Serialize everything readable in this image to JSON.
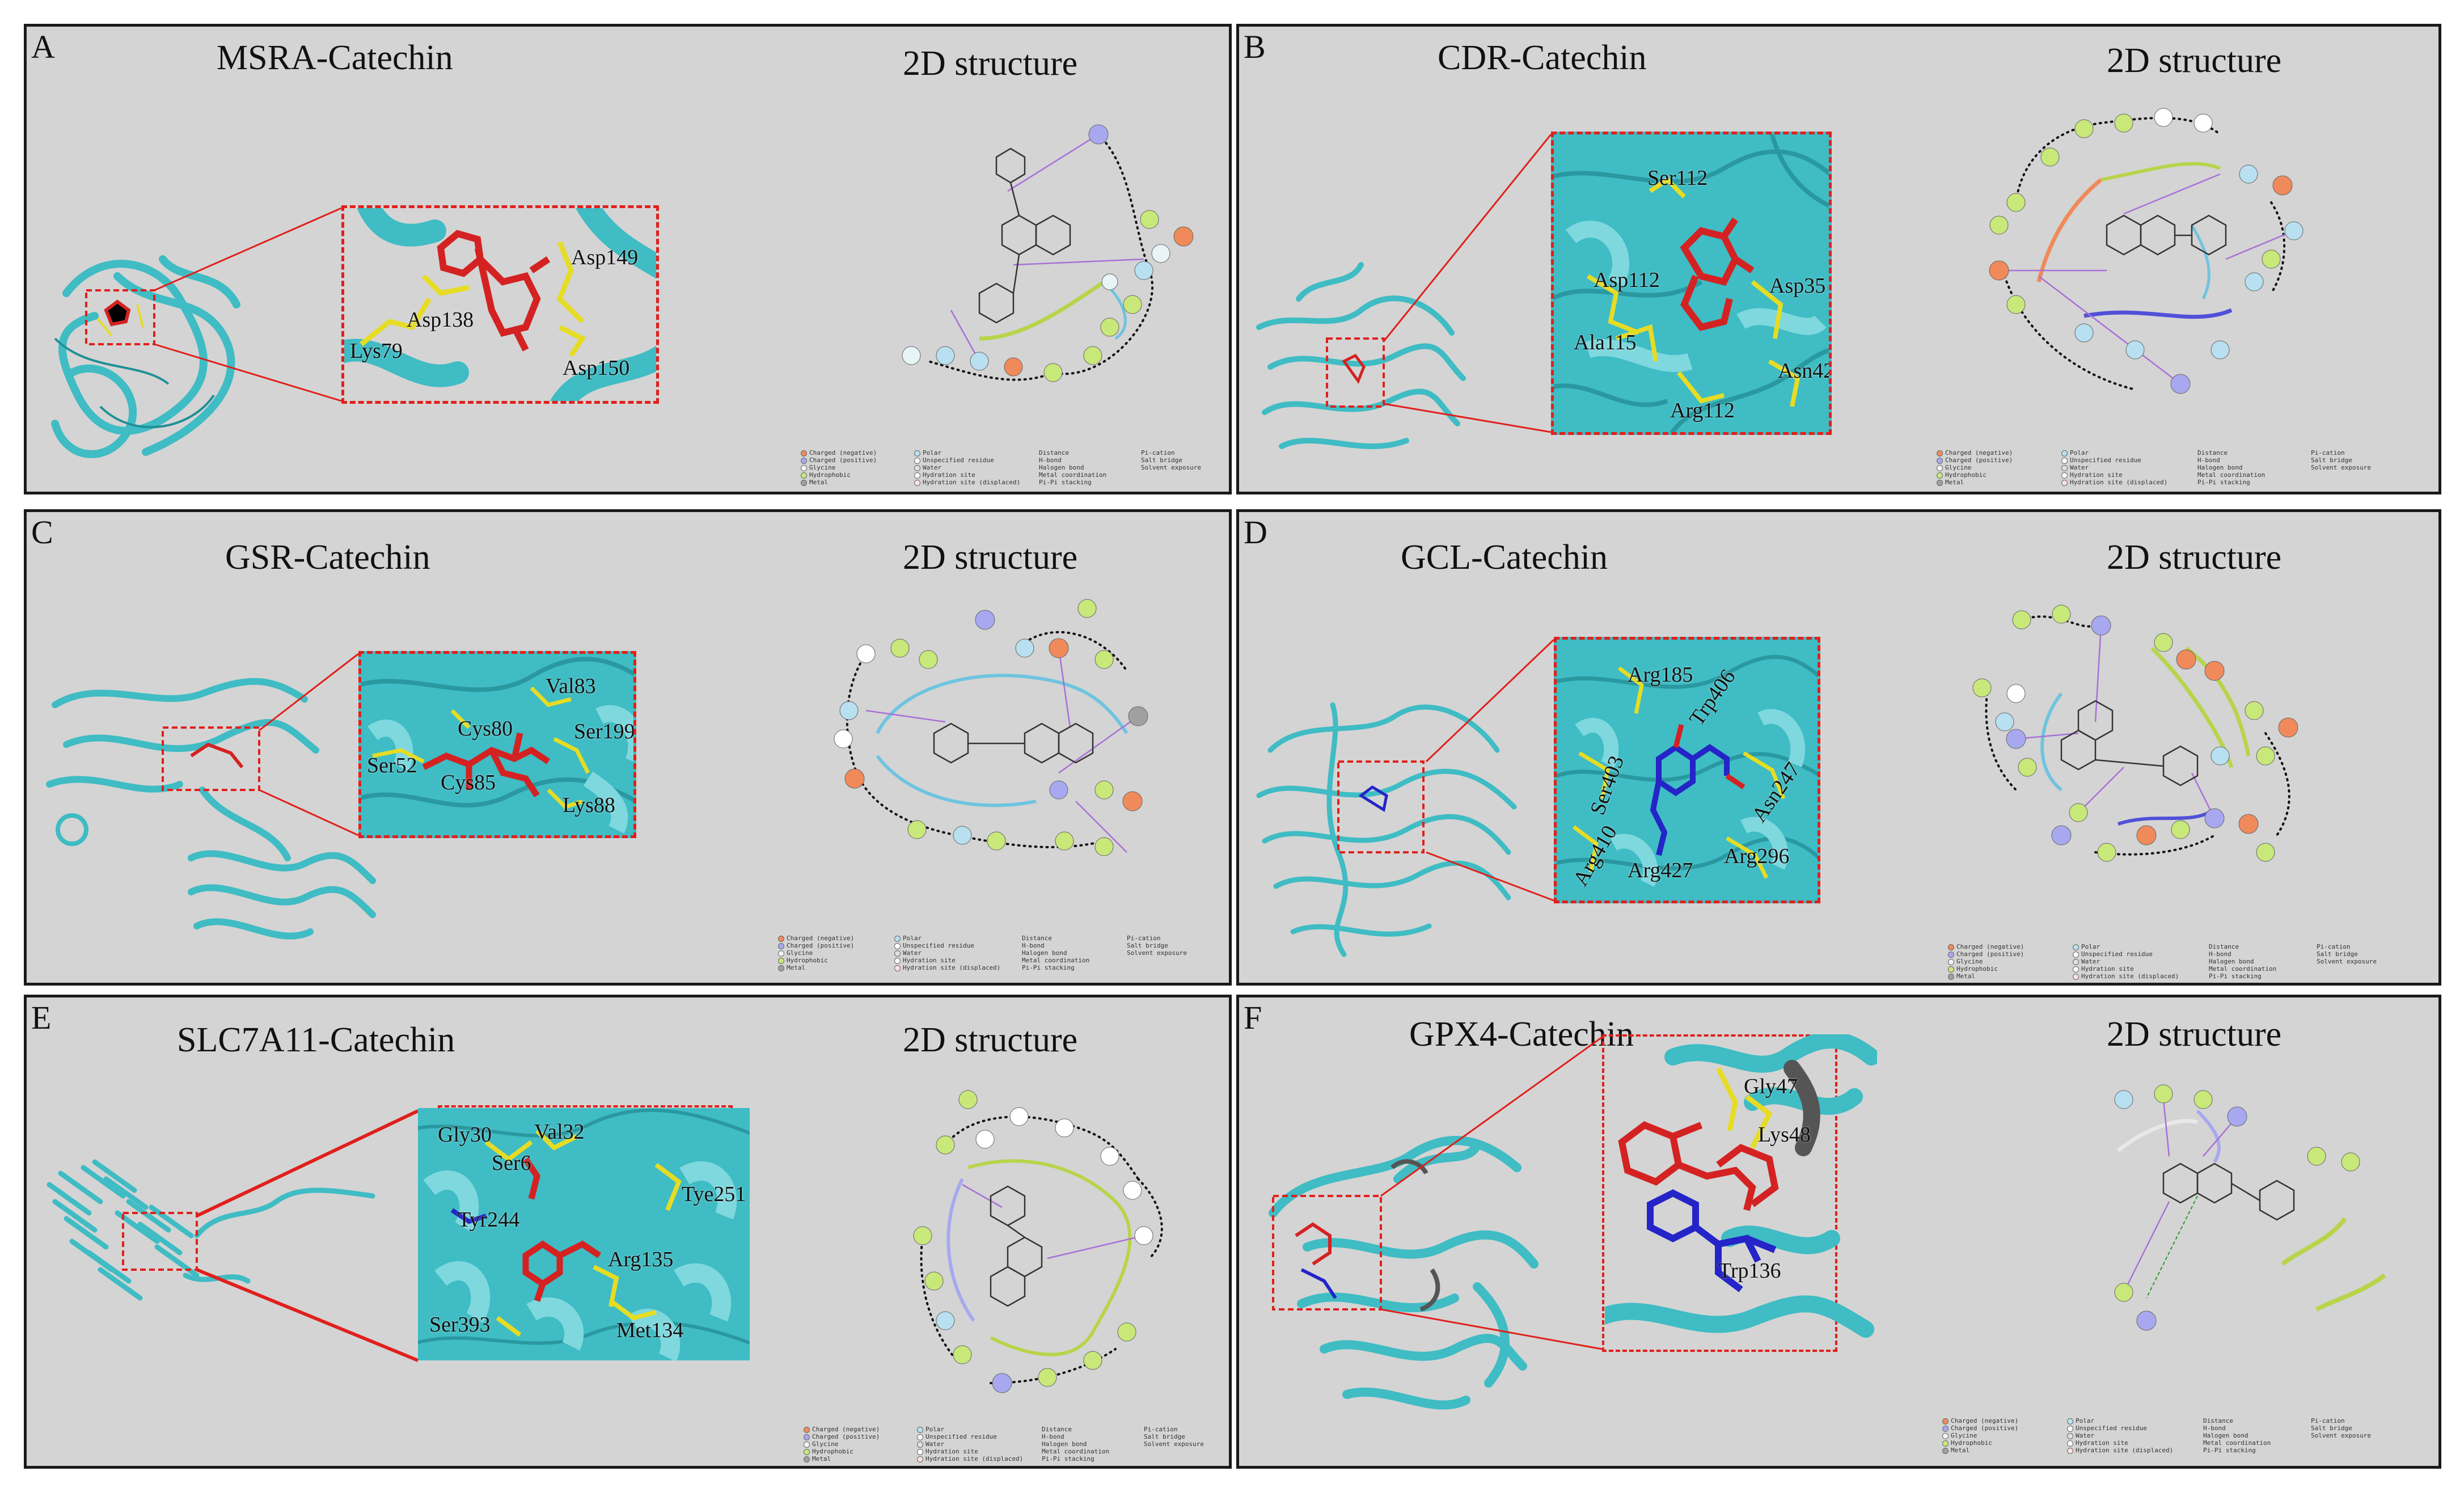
{
  "structure_label": "2D structure",
  "panels": [
    {
      "letter": "A",
      "title": "MSRA-Catechin",
      "residues": [
        "Asp149",
        "Asp138",
        "Lys79",
        "Asp150"
      ]
    },
    {
      "letter": "B",
      "title": "CDR-Catechin",
      "residues": [
        "Ser112",
        "Asp112",
        "Asp35",
        "Ala115",
        "Asn42",
        "Arg112"
      ]
    },
    {
      "letter": "C",
      "title": "GSR-Catechin",
      "residues": [
        "Val83",
        "Cys80",
        "Ser199",
        "Ser52",
        "Cys85",
        "Lys88"
      ]
    },
    {
      "letter": "D",
      "title": "GCL-Catechin",
      "residues": [
        "Arg185",
        "Trp406",
        "Ser403",
        "Asn247",
        "Arg410",
        "Arg427",
        "Arg296"
      ]
    },
    {
      "letter": "E",
      "title": "SLC7A11-Catechin",
      "residues": [
        "Gly30",
        "Val32",
        "Ser6",
        "Tye251",
        "Tyr244",
        "Arg135",
        "Ser393",
        "Met134"
      ]
    },
    {
      "letter": "F",
      "title": "GPX4-Catechin",
      "residues": [
        "Gly47",
        "Lys48",
        "Trp136"
      ]
    }
  ],
  "legend": {
    "col1": [
      "Charged (negative)",
      "Charged (positive)",
      "Glycine",
      "Hydrophobic",
      "Metal"
    ],
    "col2": [
      "Polar",
      "Unspecified residue",
      "Water",
      "Hydration site",
      "Hydration site (displaced)"
    ],
    "col3": [
      "Distance",
      "H-bond",
      "Halogen bond",
      "Metal coordination",
      "Pi-Pi stacking"
    ],
    "col4": [
      "Pi-cation",
      "Salt bridge",
      "Solvent exposure"
    ]
  },
  "colors": {
    "panel_bg": "#d4d4d4",
    "protein": "#3fbcc4",
    "ligand": "#d42222",
    "residue_stick": "#e6dc24",
    "zoom_box": "#e0201c",
    "ligand_blue": "#2424c8"
  }
}
